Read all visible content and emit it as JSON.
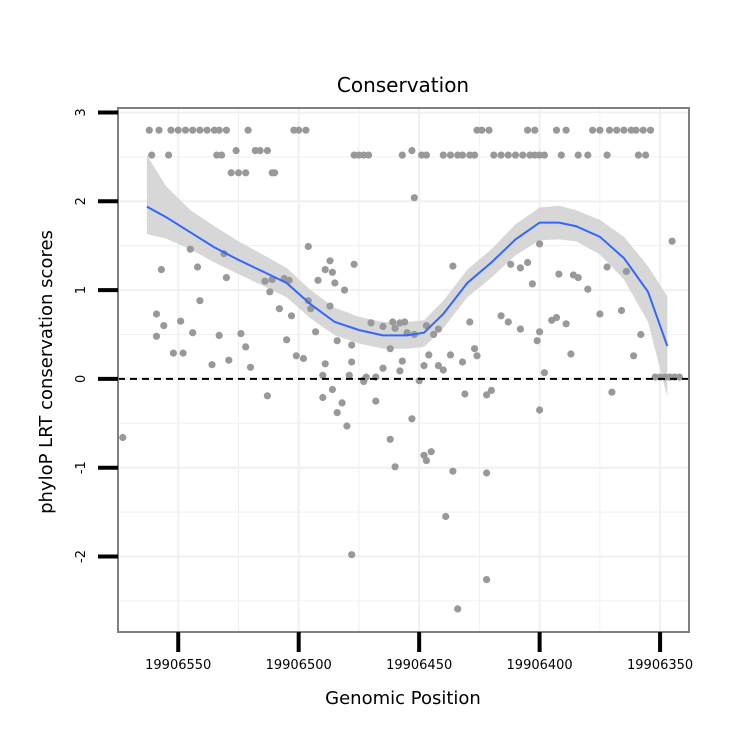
{
  "chart_data": {
    "type": "scatter",
    "title": "Conservation",
    "xlabel": "Genomic Position",
    "ylabel": "phyloP LRT conservation scores",
    "x_reversed": true,
    "xlim": [
      19906575,
      19906338
    ],
    "ylim": [
      -2.85,
      3.05
    ],
    "x_ticks": [
      19906550,
      19906500,
      19906450,
      19906400,
      19906350
    ],
    "x_tick_labels": [
      "19906550",
      "19906500",
      "19906450",
      "19906400",
      "19906350"
    ],
    "y_ticks": [
      -2,
      -1,
      0,
      1,
      2,
      3
    ],
    "y_tick_labels": [
      "-2",
      "-1",
      "0",
      "1",
      "2",
      "3"
    ],
    "grid": true,
    "reference_line": {
      "y": 0,
      "style": "dashed",
      "color": "#000000"
    },
    "colors": {
      "points": "#999999",
      "smooth_line": "#3366FF",
      "ribbon": "#d3d3d3",
      "grid": "#f0f0f0",
      "panel_border": "#7f7f7f"
    },
    "series": [
      {
        "kind": "points",
        "points": [
          [
            19906562,
            2.8
          ],
          [
            19906558,
            2.8
          ],
          [
            19906553,
            2.8
          ],
          [
            19906550,
            2.8
          ],
          [
            19906547,
            2.8
          ],
          [
            19906544,
            2.8
          ],
          [
            19906541,
            2.8
          ],
          [
            19906538,
            2.8
          ],
          [
            19906535,
            2.8
          ],
          [
            19906533,
            2.8
          ],
          [
            19906530,
            2.8
          ],
          [
            19906521,
            2.8
          ],
          [
            19906502,
            2.8
          ],
          [
            19906500,
            2.8
          ],
          [
            19906497,
            2.8
          ],
          [
            19906477,
            2.52
          ],
          [
            19906475,
            2.52
          ],
          [
            19906473,
            2.52
          ],
          [
            19906471,
            2.52
          ],
          [
            19906457,
            2.52
          ],
          [
            19906449,
            2.52
          ],
          [
            19906447,
            2.52
          ],
          [
            19906440,
            2.52
          ],
          [
            19906437,
            2.52
          ],
          [
            19906434,
            2.52
          ],
          [
            19906432,
            2.52
          ],
          [
            19906429,
            2.52
          ],
          [
            19906427,
            2.52
          ],
          [
            19906426,
            2.8
          ],
          [
            19906424,
            2.8
          ],
          [
            19906421,
            2.8
          ],
          [
            19906419,
            2.52
          ],
          [
            19906416,
            2.52
          ],
          [
            19906413,
            2.52
          ],
          [
            19906410,
            2.52
          ],
          [
            19906407,
            2.52
          ],
          [
            19906404,
            2.52
          ],
          [
            19906402,
            2.52
          ],
          [
            19906400,
            2.52
          ],
          [
            19906398,
            2.52
          ],
          [
            19906405,
            2.8
          ],
          [
            19906402,
            2.8
          ],
          [
            19906393,
            2.8
          ],
          [
            19906389,
            2.8
          ],
          [
            19906391,
            2.52
          ],
          [
            19906384,
            2.52
          ],
          [
            19906380,
            2.52
          ],
          [
            19906378,
            2.8
          ],
          [
            19906375,
            2.8
          ],
          [
            19906371,
            2.8
          ],
          [
            19906368,
            2.8
          ],
          [
            19906365,
            2.8
          ],
          [
            19906362,
            2.8
          ],
          [
            19906360,
            2.8
          ],
          [
            19906357,
            2.8
          ],
          [
            19906354,
            2.8
          ],
          [
            19906372,
            2.52
          ],
          [
            19906359,
            2.52
          ],
          [
            19906356,
            2.52
          ],
          [
            19906561,
            2.52
          ],
          [
            19906554,
            2.52
          ],
          [
            19906534,
            2.52
          ],
          [
            19906532,
            2.52
          ],
          [
            19906526,
            2.57
          ],
          [
            19906518,
            2.57
          ],
          [
            19906516,
            2.57
          ],
          [
            19906513,
            2.57
          ],
          [
            19906528,
            2.32
          ],
          [
            19906525,
            2.32
          ],
          [
            19906522,
            2.32
          ],
          [
            19906511,
            2.32
          ],
          [
            19906510,
            2.32
          ],
          [
            19906453,
            2.57
          ],
          [
            19906452,
            2.04
          ],
          [
            19906545,
            1.46
          ],
          [
            19906531,
            1.41
          ],
          [
            19906514,
            1.1
          ],
          [
            19906511,
            1.12
          ],
          [
            19906506,
            1.13
          ],
          [
            19906504,
            1.11
          ],
          [
            19906496,
            1.49
          ],
          [
            19906489,
            1.23
          ],
          [
            19906487,
            1.33
          ],
          [
            19906492,
            1.11
          ],
          [
            19906486,
            1.2
          ],
          [
            19906481,
            1.0
          ],
          [
            19906559,
            0.73
          ],
          [
            19906557,
            1.23
          ],
          [
            19906559,
            0.48
          ],
          [
            19906556,
            0.6
          ],
          [
            19906549,
            0.65
          ],
          [
            19906541,
            0.88
          ],
          [
            19906542,
            1.26
          ],
          [
            19906530,
            1.14
          ],
          [
            19906529,
            0.21
          ],
          [
            19906524,
            0.51
          ],
          [
            19906533,
            0.49
          ],
          [
            19906522,
            0.36
          ],
          [
            19906520,
            0.13
          ],
          [
            19906536,
            0.16
          ],
          [
            19906544,
            0.52
          ],
          [
            19906548,
            0.29
          ],
          [
            19906552,
            0.29
          ],
          [
            19906512,
            0.98
          ],
          [
            19906508,
            0.79
          ],
          [
            19906503,
            0.71
          ],
          [
            19906501,
            0.26
          ],
          [
            19906498,
            0.23
          ],
          [
            19906505,
            0.44
          ],
          [
            19906485,
            1.08
          ],
          [
            19906487,
            0.82
          ],
          [
            19906490,
            0.04
          ],
          [
            19906495,
            0.79
          ],
          [
            19906493,
            0.53
          ],
          [
            19906478,
            0.38
          ],
          [
            19906477,
            1.29
          ],
          [
            19906479,
            0.04
          ],
          [
            19906478,
            0.19
          ],
          [
            19906470,
            0.63
          ],
          [
            19906465,
            0.12
          ],
          [
            19906465,
            0.59
          ],
          [
            19906461,
            0.64
          ],
          [
            19906458,
            0.63
          ],
          [
            19906455,
            0.52
          ],
          [
            19906447,
            0.6
          ],
          [
            19906442,
            0.56
          ],
          [
            19906442,
            0.15
          ],
          [
            19906440,
            0.1
          ],
          [
            19906437,
            0.27
          ],
          [
            19906436,
            1.27
          ],
          [
            19906432,
            0.19
          ],
          [
            19906429,
            0.64
          ],
          [
            19906431,
            -0.17
          ],
          [
            19906427,
            0.34
          ],
          [
            19906426,
            0.26
          ],
          [
            19906413,
            0.64
          ],
          [
            19906416,
            0.71
          ],
          [
            19906408,
            0.56
          ],
          [
            19906400,
            0.53
          ],
          [
            19906398,
            0.07
          ],
          [
            19906393,
            0.69
          ],
          [
            19906389,
            0.62
          ],
          [
            19906387,
            0.28
          ],
          [
            19906448,
            0.15
          ],
          [
            19906452,
            0.5
          ],
          [
            19906444,
            0.5
          ],
          [
            19906446,
            0.27
          ],
          [
            19906458,
            0.09
          ],
          [
            19906457,
            0.2
          ],
          [
            19906460,
            0.57
          ],
          [
            19906462,
            0.34
          ],
          [
            19906496,
            0.88
          ],
          [
            19906489,
            0.17
          ],
          [
            19906484,
            0.43
          ],
          [
            19906490,
            -0.21
          ],
          [
            19906468,
            0.02
          ],
          [
            19906472,
            0.02
          ],
          [
            19906468,
            -0.25
          ],
          [
            19906473,
            -0.03
          ],
          [
            19906456,
            0.64
          ],
          [
            19906450,
            -0.02
          ],
          [
            19906422,
            -0.18
          ],
          [
            19906420,
            -0.13
          ],
          [
            19906412,
            1.29
          ],
          [
            19906408,
            1.25
          ],
          [
            19906405,
            1.31
          ],
          [
            19906403,
            1.07
          ],
          [
            19906401,
            0.43
          ],
          [
            19906400,
            1.52
          ],
          [
            19906395,
            0.66
          ],
          [
            19906392,
            1.18
          ],
          [
            19906384,
            1.14
          ],
          [
            19906380,
            1.01
          ],
          [
            19906375,
            0.73
          ],
          [
            19906372,
            1.26
          ],
          [
            19906366,
            0.77
          ],
          [
            19906364,
            1.21
          ],
          [
            19906361,
            0.26
          ],
          [
            19906358,
            0.5
          ],
          [
            19906370,
            -0.15
          ],
          [
            19906400,
            -0.35
          ],
          [
            19906386,
            1.17
          ],
          [
            19906352,
            0.02
          ],
          [
            19906350,
            0.02
          ],
          [
            19906348,
            0.02
          ],
          [
            19906346,
            0.02
          ],
          [
            19906344,
            0.02
          ],
          [
            19906342,
            0.02
          ],
          [
            19906345,
            1.55
          ],
          [
            19906573,
            -0.66
          ],
          [
            19906513,
            -0.19
          ],
          [
            19906486,
            -0.12
          ],
          [
            19906484,
            -0.38
          ],
          [
            19906482,
            -0.27
          ],
          [
            19906480,
            -0.53
          ],
          [
            19906473,
            -0.01
          ],
          [
            19906462,
            -0.68
          ],
          [
            19906460,
            -0.99
          ],
          [
            19906453,
            -0.45
          ],
          [
            19906448,
            -0.86
          ],
          [
            19906447,
            -0.92
          ],
          [
            19906445,
            -0.82
          ],
          [
            19906439,
            -1.55
          ],
          [
            19906436,
            -1.04
          ],
          [
            19906422,
            -1.06
          ],
          [
            19906478,
            -1.98
          ],
          [
            19906422,
            -2.26
          ],
          [
            19906434,
            -2.59
          ]
        ]
      },
      {
        "kind": "smooth",
        "x": [
          19906563,
          19906555,
          19906545,
          19906535,
          19906525,
          19906515,
          19906505,
          19906495,
          19906485,
          19906475,
          19906465,
          19906455,
          19906448,
          19906440,
          19906430,
          19906420,
          19906410,
          19906400,
          19906392,
          19906385,
          19906375,
          19906365,
          19906355,
          19906347
        ],
        "y": [
          1.94,
          1.82,
          1.65,
          1.48,
          1.34,
          1.21,
          1.08,
          0.84,
          0.64,
          0.55,
          0.49,
          0.49,
          0.52,
          0.73,
          1.08,
          1.31,
          1.57,
          1.76,
          1.76,
          1.72,
          1.6,
          1.36,
          0.98,
          0.37
        ],
        "ci_low": [
          1.63,
          1.58,
          1.46,
          1.31,
          1.18,
          1.05,
          0.92,
          0.68,
          0.49,
          0.4,
          0.34,
          0.34,
          0.36,
          0.57,
          0.92,
          1.14,
          1.39,
          1.56,
          1.57,
          1.55,
          1.4,
          1.12,
          0.64,
          -0.2
        ],
        "ci_high": [
          2.52,
          2.17,
          1.9,
          1.72,
          1.55,
          1.4,
          1.25,
          1.0,
          0.8,
          0.7,
          0.64,
          0.64,
          0.66,
          0.88,
          1.23,
          1.46,
          1.74,
          1.93,
          1.95,
          1.9,
          1.79,
          1.6,
          1.27,
          0.93
        ]
      }
    ]
  }
}
